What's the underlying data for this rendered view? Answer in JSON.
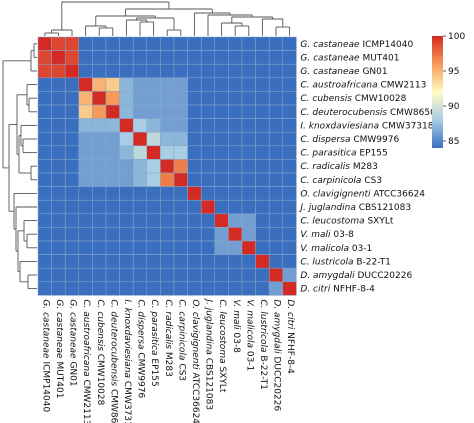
{
  "chart_data": {
    "type": "heatmap",
    "labels": [
      "G. castaneae ICMP14040",
      "G. castaneae MUT401",
      "G. castaneae GN01",
      "C. austroafricana CMW2113",
      "C. cubensis CMW10028",
      "C. deuterocubensis CMW8650",
      "I. knoxdaviesiana CMW37318",
      "C. dispersa CMW9976",
      "C. parasitica EP155",
      "C. radicalis M283",
      "C. carpinicola CS3",
      "O. clavigignenti ATCC36624",
      "J. juglandina CBS121083",
      "C. leucostoma SXYLt",
      "V. mali 03-8",
      "V. malicola 03-1",
      "C. lustricola B-22-T1",
      "D. amygdali DUCC20226",
      "D. citri NFHF-8-4"
    ],
    "genus_italic_split": true,
    "matrix": [
      [
        100,
        99,
        99,
        84,
        84,
        84,
        84,
        84,
        84,
        84,
        84,
        84,
        84,
        84,
        84,
        84,
        84,
        84,
        84
      ],
      [
        99,
        100,
        99,
        84,
        84,
        84,
        84,
        84,
        84,
        84,
        84,
        84,
        84,
        84,
        84,
        84,
        84,
        84,
        84
      ],
      [
        99,
        99,
        100,
        84,
        84,
        84,
        84,
        84,
        84,
        84,
        84,
        84,
        84,
        84,
        84,
        84,
        84,
        84,
        84
      ],
      [
        84,
        84,
        84,
        100,
        95,
        94,
        87,
        86,
        86,
        86,
        86,
        84,
        84,
        84,
        84,
        84,
        84,
        84,
        84
      ],
      [
        84,
        84,
        84,
        95,
        100,
        96,
        87,
        86,
        86,
        86,
        86,
        84,
        84,
        84,
        84,
        84,
        84,
        84,
        84
      ],
      [
        84,
        84,
        84,
        94,
        96,
        100,
        87,
        86,
        86,
        86,
        86,
        84,
        84,
        84,
        84,
        84,
        84,
        84,
        84
      ],
      [
        84,
        84,
        84,
        87,
        87,
        87,
        100,
        88,
        87,
        86,
        86,
        84,
        84,
        84,
        84,
        84,
        84,
        84,
        84
      ],
      [
        84,
        84,
        84,
        86,
        86,
        86,
        88,
        100,
        89,
        87,
        87,
        84,
        84,
        84,
        84,
        84,
        84,
        84,
        84
      ],
      [
        84,
        84,
        84,
        86,
        86,
        86,
        87,
        89,
        100,
        88,
        88,
        84,
        84,
        84,
        84,
        84,
        84,
        84,
        84
      ],
      [
        84,
        84,
        84,
        86,
        86,
        86,
        86,
        87,
        88,
        100,
        97,
        84,
        84,
        84,
        84,
        84,
        84,
        84,
        84
      ],
      [
        84,
        84,
        84,
        86,
        86,
        86,
        86,
        87,
        88,
        97,
        100,
        84,
        84,
        84,
        84,
        84,
        84,
        84,
        84
      ],
      [
        84,
        84,
        84,
        84,
        84,
        84,
        84,
        84,
        84,
        84,
        84,
        100,
        84,
        84,
        84,
        84,
        84,
        84,
        84
      ],
      [
        84,
        84,
        84,
        84,
        84,
        84,
        84,
        84,
        84,
        84,
        84,
        84,
        100,
        84,
        84,
        84,
        84,
        84,
        84
      ],
      [
        84,
        84,
        84,
        84,
        84,
        84,
        84,
        84,
        84,
        84,
        84,
        84,
        84,
        100,
        86,
        86,
        84,
        84,
        84
      ],
      [
        84,
        84,
        84,
        84,
        84,
        84,
        84,
        84,
        84,
        84,
        84,
        84,
        84,
        86,
        100,
        86,
        84,
        84,
        84
      ],
      [
        84,
        84,
        84,
        84,
        84,
        84,
        84,
        84,
        84,
        84,
        84,
        84,
        84,
        86,
        86,
        100,
        84,
        84,
        84
      ],
      [
        84,
        84,
        84,
        84,
        84,
        84,
        84,
        84,
        84,
        84,
        84,
        84,
        84,
        84,
        84,
        84,
        100,
        84,
        84
      ],
      [
        84,
        84,
        84,
        84,
        84,
        84,
        84,
        84,
        84,
        84,
        84,
        84,
        84,
        84,
        84,
        84,
        84,
        100,
        86
      ],
      [
        84,
        84,
        84,
        84,
        84,
        84,
        84,
        84,
        84,
        84,
        84,
        84,
        84,
        84,
        84,
        84,
        84,
        86,
        100
      ]
    ],
    "colorbar": {
      "min": 84,
      "max": 100,
      "ticks": [
        85,
        90,
        95,
        100
      ]
    },
    "colorscale": [
      "#3a6fc0",
      "#a9cde4",
      "#fefcc4",
      "#f79a55",
      "#d42a24"
    ],
    "dendrogram": true
  }
}
